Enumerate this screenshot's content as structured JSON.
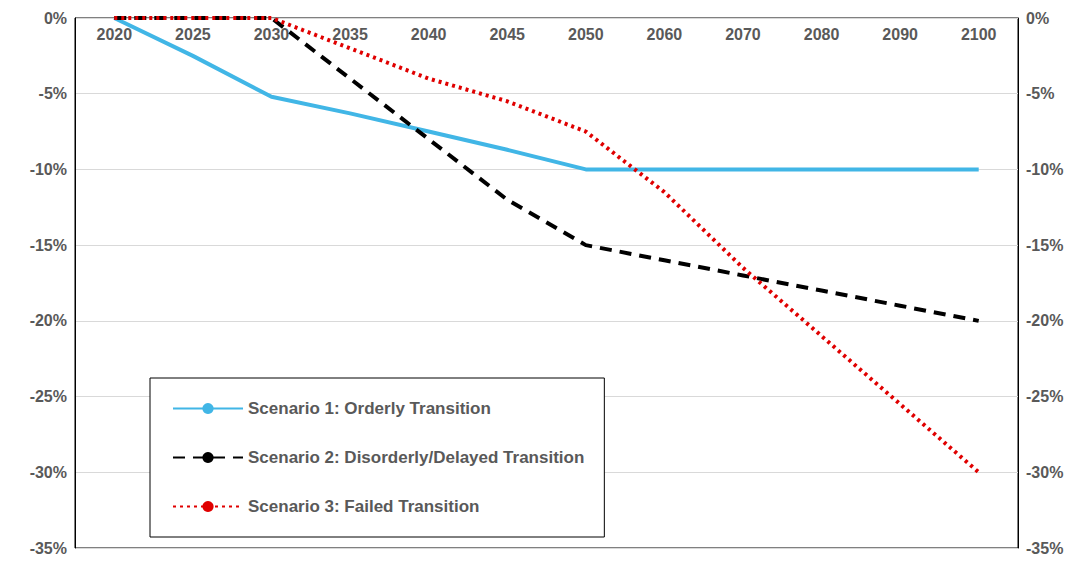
{
  "chart_data": {
    "type": "line",
    "categories": [
      "2020",
      "2025",
      "2030",
      "2035",
      "2040",
      "2045",
      "2050",
      "2060",
      "2070",
      "2080",
      "2090",
      "2100"
    ],
    "series": [
      {
        "name": "Scenario 1: Orderly Transition",
        "color": "#41b6e6",
        "line_style": "solid",
        "values": [
          0,
          -2.5,
          -5.2,
          -6.3,
          -7.5,
          -8.7,
          -10,
          -10,
          -10,
          -10,
          -10,
          -10
        ]
      },
      {
        "name": "Scenario 2: Disorderly/Delayed Transition",
        "color": "#000000",
        "line_style": "dashed",
        "values": [
          0,
          0,
          0,
          -4,
          -8,
          -12,
          -15,
          -16,
          -17,
          -18,
          -19,
          -20
        ]
      },
      {
        "name": "Scenario 3: Failed Transition",
        "color": "#e00000",
        "line_style": "dotted",
        "values": [
          0,
          0,
          0,
          -2,
          -4,
          -5.5,
          -7.5,
          -11.5,
          -16.5,
          -21,
          -25.5,
          -30
        ]
      }
    ],
    "ylim": [
      -35,
      0
    ],
    "yticks": [
      {
        "value": 0,
        "label": "0%"
      },
      {
        "value": -5,
        "label": "-5%"
      },
      {
        "value": -10,
        "label": "-10%"
      },
      {
        "value": -15,
        "label": "-15%"
      },
      {
        "value": -20,
        "label": "-20%"
      },
      {
        "value": -25,
        "label": "-25%"
      },
      {
        "value": -30,
        "label": "-30%"
      },
      {
        "value": -35,
        "label": "-35%"
      }
    ],
    "y2lim": [
      -35,
      0
    ],
    "y2ticks": [
      {
        "value": 0,
        "label": "0%"
      },
      {
        "value": -5,
        "label": "-5%"
      },
      {
        "value": -10,
        "label": "-10%"
      },
      {
        "value": -15,
        "label": "-15%"
      },
      {
        "value": -20,
        "label": "-20%"
      },
      {
        "value": -25,
        "label": "-25%"
      },
      {
        "value": -30,
        "label": "-30%"
      },
      {
        "value": -35,
        "label": "-35%"
      }
    ],
    "grid": true,
    "legend": "lower left"
  }
}
